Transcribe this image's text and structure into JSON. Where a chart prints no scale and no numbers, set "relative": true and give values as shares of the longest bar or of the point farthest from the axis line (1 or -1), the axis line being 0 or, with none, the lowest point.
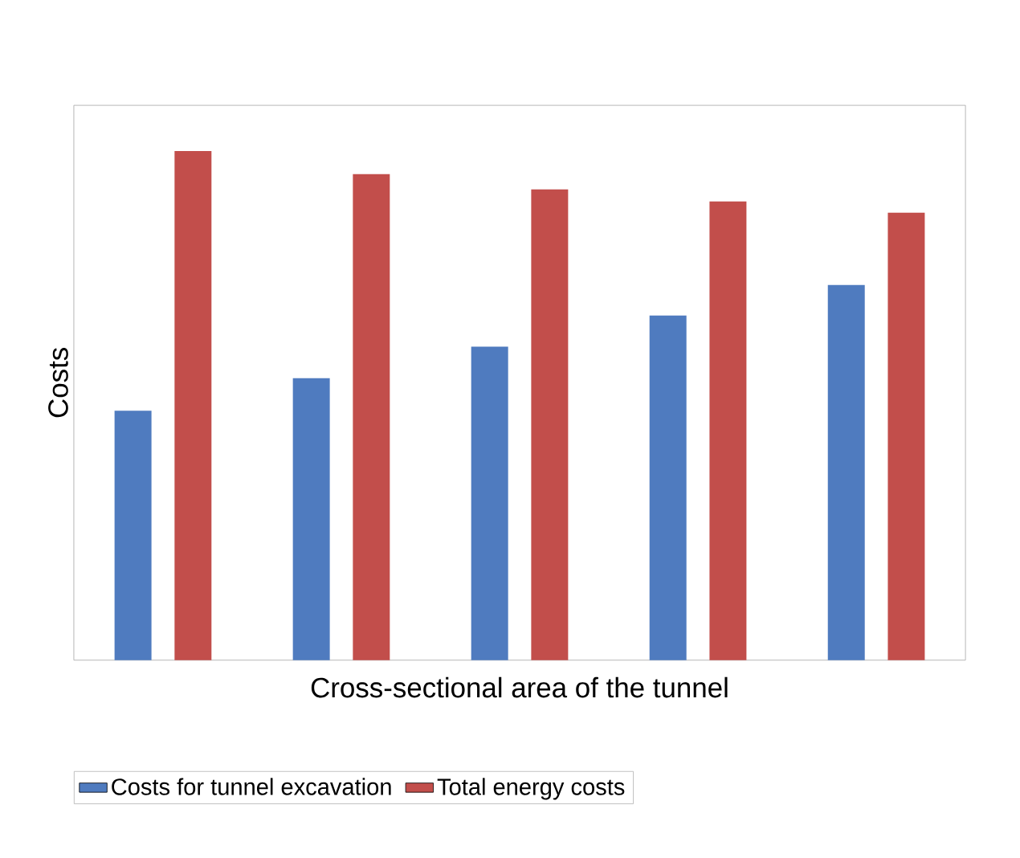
{
  "chart_data": {
    "type": "bar",
    "relative": true,
    "xlabel": "Cross-sectional area of the tunnel",
    "ylabel": "Costs",
    "categories": [
      null,
      null,
      null,
      null,
      null
    ],
    "legend": "bottom",
    "series": [
      {
        "name": "Costs for tunnel excavation",
        "color": "#4f7bbf",
        "values": [
          0.49,
          0.554,
          0.616,
          0.677,
          0.737
        ]
      },
      {
        "name": "Total energy costs",
        "color": "#c24e4b",
        "values": [
          1,
          0.955,
          0.925,
          0.901,
          0.879
        ]
      }
    ]
  }
}
